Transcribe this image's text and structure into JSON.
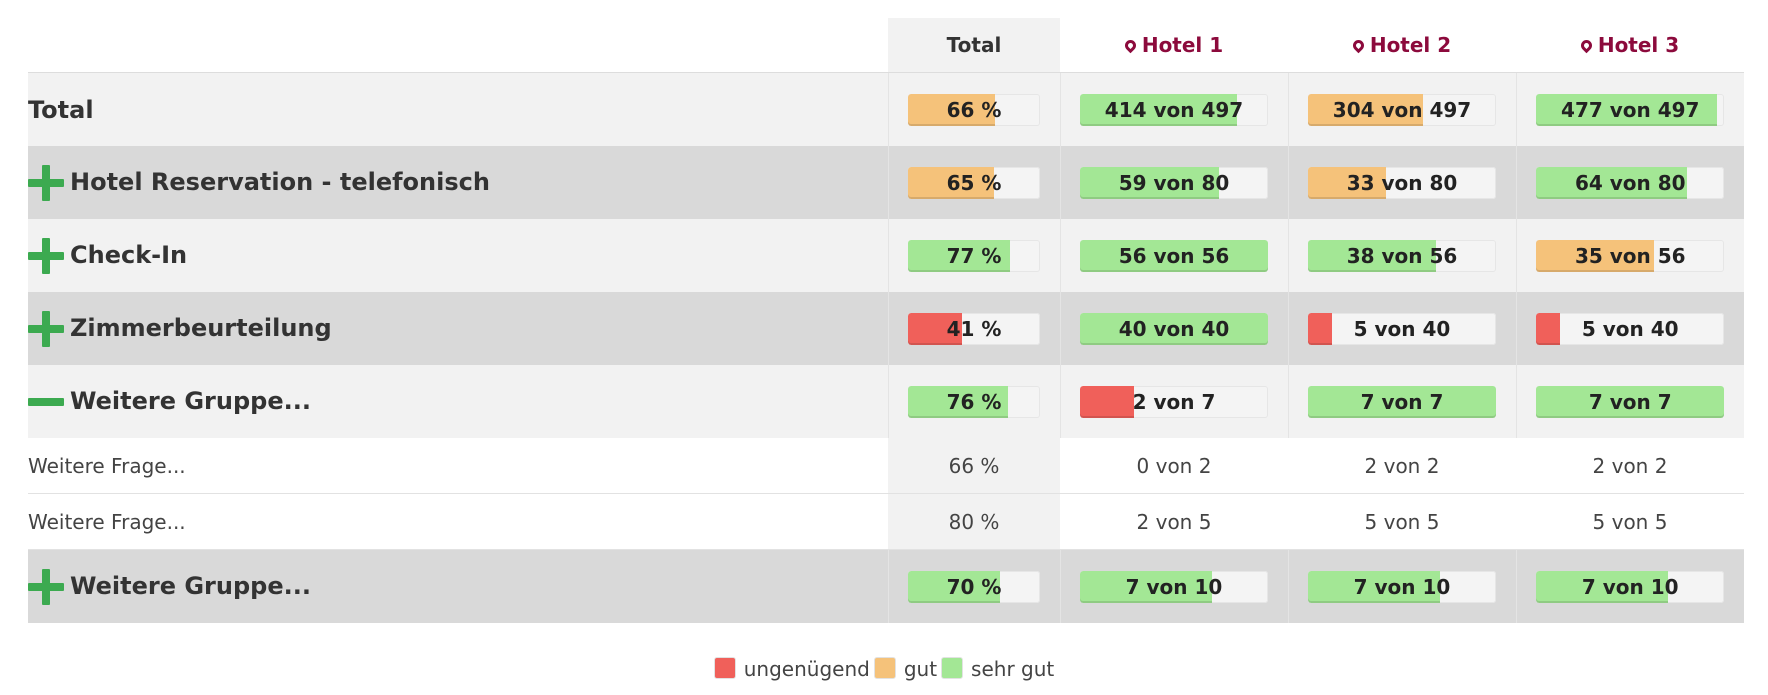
{
  "colors": {
    "ungenuegend": "#f0605a",
    "gut": "#f5c27a",
    "sehr_gut": "#a3e795",
    "accent": "#8c0a3c",
    "toggle": "#3caa50"
  },
  "header": {
    "total": "Total",
    "hotels": [
      "Hotel 1",
      "Hotel 2",
      "Hotel 3"
    ]
  },
  "rows": [
    {
      "label": "Total",
      "toggle": "none",
      "shade": "light",
      "cells": [
        {
          "text": "66 %",
          "fill": 0.66,
          "rating": "gut"
        },
        {
          "text": "414 von 497",
          "fill": 0.833,
          "rating": "sehr_gut"
        },
        {
          "text": "304 von 497",
          "fill": 0.612,
          "rating": "gut"
        },
        {
          "text": "477 von 497",
          "fill": 0.96,
          "rating": "sehr_gut"
        }
      ]
    },
    {
      "label": "Hotel Reservation - telefonisch",
      "toggle": "plus",
      "shade": "dark",
      "cells": [
        {
          "text": "65 %",
          "fill": 0.65,
          "rating": "gut"
        },
        {
          "text": "59 von 80",
          "fill": 0.7375,
          "rating": "sehr_gut"
        },
        {
          "text": "33 von 80",
          "fill": 0.4125,
          "rating": "gut"
        },
        {
          "text": "64 von 80",
          "fill": 0.8,
          "rating": "sehr_gut"
        }
      ]
    },
    {
      "label": "Check-In",
      "toggle": "plus",
      "shade": "light",
      "cells": [
        {
          "text": "77 %",
          "fill": 0.77,
          "rating": "sehr_gut"
        },
        {
          "text": "56 von 56",
          "fill": 1.0,
          "rating": "sehr_gut"
        },
        {
          "text": "38 von 56",
          "fill": 0.679,
          "rating": "sehr_gut"
        },
        {
          "text": "35 von 56",
          "fill": 0.625,
          "rating": "gut"
        }
      ]
    },
    {
      "label": "Zimmerbeurteilung",
      "toggle": "plus",
      "shade": "dark",
      "cells": [
        {
          "text": "41 %",
          "fill": 0.41,
          "rating": "ungenuegend"
        },
        {
          "text": "40 von 40",
          "fill": 1.0,
          "rating": "sehr_gut"
        },
        {
          "text": "5 von 40",
          "fill": 0.125,
          "rating": "ungenuegend"
        },
        {
          "text": "5 von 40",
          "fill": 0.125,
          "rating": "ungenuegend"
        }
      ]
    },
    {
      "label": "Weitere Gruppe...",
      "toggle": "minus",
      "shade": "light",
      "cells": [
        {
          "text": "76 %",
          "fill": 0.76,
          "rating": "sehr_gut"
        },
        {
          "text": "2 von 7",
          "fill": 0.286,
          "rating": "ungenuegend"
        },
        {
          "text": "7 von 7",
          "fill": 1.0,
          "rating": "sehr_gut"
        },
        {
          "text": "7 von 7",
          "fill": 1.0,
          "rating": "sehr_gut"
        }
      ],
      "questions": [
        {
          "label": "Weitere Frage...",
          "values": [
            "66 %",
            "0 von 2",
            "2 von 2",
            "2 von 2"
          ]
        },
        {
          "label": "Weitere Frage...",
          "values": [
            "80 %",
            "2 von 5",
            "5 von 5",
            "5 von 5"
          ]
        }
      ]
    },
    {
      "label": "Weitere Gruppe...",
      "toggle": "plus",
      "shade": "dark",
      "cells": [
        {
          "text": "70 %",
          "fill": 0.7,
          "rating": "sehr_gut"
        },
        {
          "text": "7 von 10",
          "fill": 0.7,
          "rating": "sehr_gut"
        },
        {
          "text": "7 von 10",
          "fill": 0.7,
          "rating": "sehr_gut"
        },
        {
          "text": "7 von 10",
          "fill": 0.7,
          "rating": "sehr_gut"
        }
      ]
    }
  ],
  "legend": [
    {
      "key": "ungenuegend",
      "label": "ungenügend"
    },
    {
      "key": "gut",
      "label": "gut"
    },
    {
      "key": "sehr_gut",
      "label": "sehr gut"
    }
  ]
}
